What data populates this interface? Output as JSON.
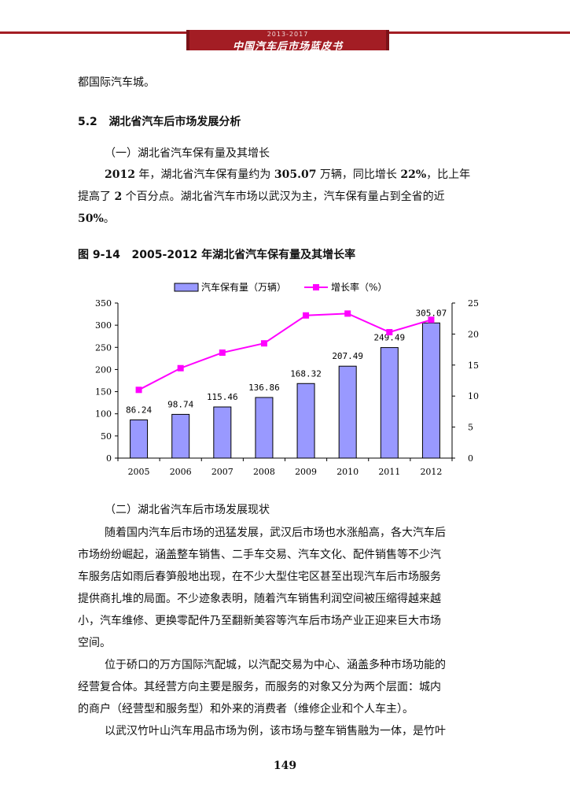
{
  "header": {
    "year_range": "2013-2017",
    "title": "中国汽车后市场蓝皮书"
  },
  "intro_line": "都国际汽车城。",
  "section": {
    "number": "5.2",
    "title": "湖北省汽车后市场发展分析"
  },
  "subsection1": "（一）湖北省汽车保有量及其增长",
  "para1": {
    "line1_a": "2012",
    "line1_b": " 年，湖北省汽车保有量约为 ",
    "line1_c": "305.07",
    "line1_d": " 万辆，同比增长 ",
    "line1_e": "22%",
    "line1_f": "，比上年",
    "line2_a": "提高了 ",
    "line2_b": "2",
    "line2_c": " 个百分点。湖北省汽车市场以武汉为主，汽车保有量占到全省的近",
    "line3_a": "50%",
    "line3_b": "。"
  },
  "figure": {
    "label": "图 9-14",
    "title": "2005-2012 年湖北省汽车保有量及其增长率"
  },
  "chart_data": {
    "type": "bar+line",
    "categories": [
      "2005",
      "2006",
      "2007",
      "2008",
      "2009",
      "2010",
      "2011",
      "2012"
    ],
    "series": [
      {
        "name": "汽车保有量（万辆）",
        "type": "bar",
        "axis": "left",
        "values": [
          86.24,
          98.74,
          115.46,
          136.86,
          168.32,
          207.49,
          249.49,
          305.07
        ],
        "labels": [
          "86.24",
          "98.74",
          "115.46",
          "136.86",
          "168.32",
          "207.49",
          "249.49",
          "305.07"
        ],
        "color": "#9999ff"
      },
      {
        "name": "增长率（%）",
        "type": "line",
        "axis": "right",
        "values": [
          11.0,
          14.5,
          17.0,
          18.5,
          23.0,
          23.3,
          20.3,
          22.3
        ],
        "color": "#ff00ff"
      }
    ],
    "y_left": {
      "range": [
        0,
        350
      ],
      "ticks": [
        "0",
        "50",
        "100",
        "150",
        "200",
        "250",
        "300",
        "350"
      ]
    },
    "y_right": {
      "range": [
        0,
        25
      ],
      "ticks": [
        "0",
        "5",
        "10",
        "15",
        "20",
        "25"
      ]
    },
    "legend_position": "top-center",
    "grid": false
  },
  "subsection2": "（二）湖北省汽车后市场发展现状",
  "para2": [
    "随着国内汽车后市场的迅猛发展，武汉后市场也水涨船高，各大汽车后",
    "市场纷纷崛起，涵盖整车销售、二手车交易、汽车文化、配件销售等不少汽",
    "车服务店如雨后春笋般地出现，在不少大型住宅区甚至出现汽车后市场服务",
    "提供商扎堆的局面。不少迹象表明，随着汽车销售利润空间被压缩得越来越",
    "小，汽车维修、更换零配件乃至翻新美容等汽车后市场产业正迎来巨大市场",
    "空间。"
  ],
  "para3": [
    "位于硚口的万方国际汽配城，以汽配交易为中心、涵盖多种市场功能的",
    "经营复合体。其经营方向主要是服务，而服务的对象又分为两个层面：城内",
    "的商户（经营型和服务型）和外来的消费者（维修企业和个人车主）。"
  ],
  "para4": [
    "以武汉竹叶山汽车用品市场为例，该市场与整车销售融为一体，是竹叶"
  ],
  "page_number": "149"
}
